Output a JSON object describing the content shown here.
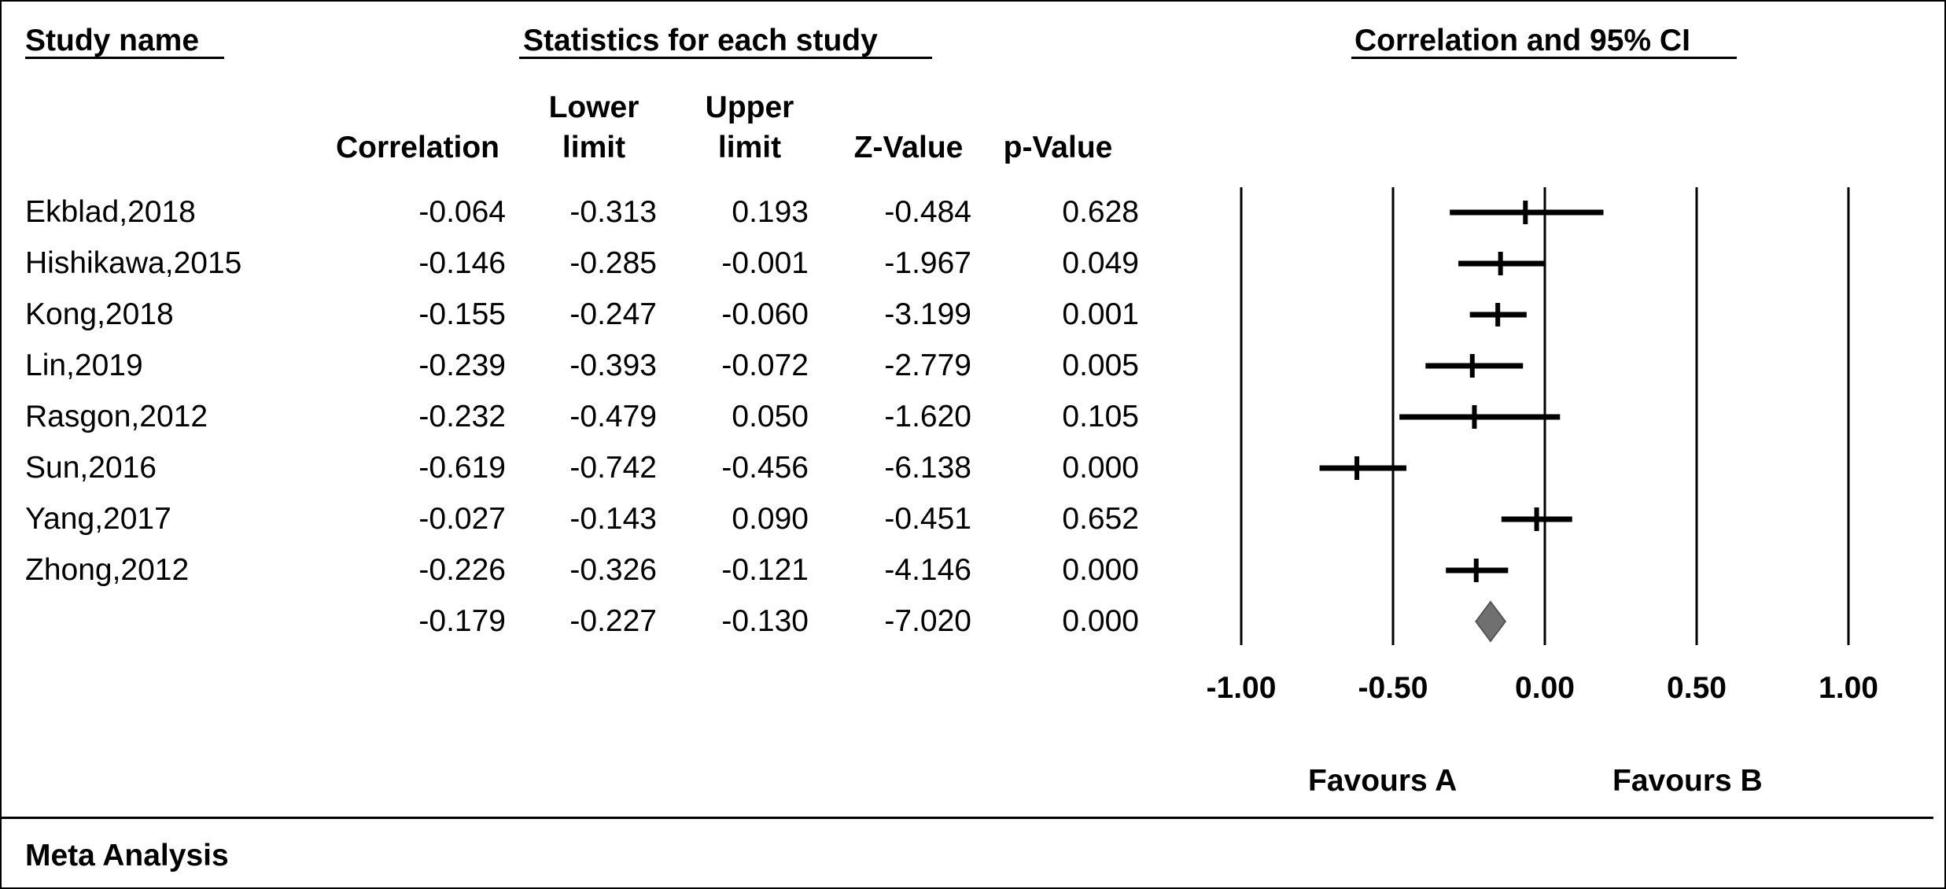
{
  "headers": {
    "study_name": "Study name",
    "stats_group": "Statistics for each study",
    "plot_group": "Correlation and 95% CI",
    "correlation": "Correlation",
    "lower_1": "Lower",
    "lower_2": "limit",
    "upper_1": "Upper",
    "upper_2": "limit",
    "zvalue": "Z-Value",
    "pvalue": "p-Value"
  },
  "rows": [
    {
      "name": "Ekblad,2018",
      "correlation": "-0.064",
      "lower": "-0.313",
      "upper": "0.193",
      "z": "-0.484",
      "p": "0.628"
    },
    {
      "name": "Hishikawa,2015",
      "correlation": "-0.146",
      "lower": "-0.285",
      "upper": "-0.001",
      "z": "-1.967",
      "p": "0.049"
    },
    {
      "name": "Kong,2018",
      "correlation": "-0.155",
      "lower": "-0.247",
      "upper": "-0.060",
      "z": "-3.199",
      "p": "0.001"
    },
    {
      "name": "Lin,2019",
      "correlation": "-0.239",
      "lower": "-0.393",
      "upper": "-0.072",
      "z": "-2.779",
      "p": "0.005"
    },
    {
      "name": "Rasgon,2012",
      "correlation": "-0.232",
      "lower": "-0.479",
      "upper": "0.050",
      "z": "-1.620",
      "p": "0.105"
    },
    {
      "name": "Sun,2016",
      "correlation": "-0.619",
      "lower": "-0.742",
      "upper": "-0.456",
      "z": "-6.138",
      "p": "0.000"
    },
    {
      "name": "Yang,2017",
      "correlation": "-0.027",
      "lower": "-0.143",
      "upper": "0.090",
      "z": "-0.451",
      "p": "0.652"
    },
    {
      "name": "Zhong,2012",
      "correlation": "-0.226",
      "lower": "-0.326",
      "upper": "-0.121",
      "z": "-4.146",
      "p": "0.000"
    }
  ],
  "summary": {
    "name": "",
    "correlation": "-0.179",
    "lower": "-0.227",
    "upper": "-0.130",
    "z": "-7.020",
    "p": "0.000"
  },
  "favours_a": "Favours A",
  "favours_b": "Favours B",
  "footer_label": "Meta Analysis",
  "colors": {
    "diamond": "#707070",
    "line": "#000000"
  },
  "chart_data": {
    "type": "forest",
    "xlim": [
      -1.0,
      1.0
    ],
    "xticks": [
      "-1.00",
      "-0.50",
      "0.00",
      "0.50",
      "1.00"
    ],
    "studies": [
      {
        "name": "Ekblad,2018",
        "value": -0.064,
        "lower": -0.313,
        "upper": 0.193
      },
      {
        "name": "Hishikawa,2015",
        "value": -0.146,
        "lower": -0.285,
        "upper": -0.001
      },
      {
        "name": "Kong,2018",
        "value": -0.155,
        "lower": -0.247,
        "upper": -0.06
      },
      {
        "name": "Lin,2019",
        "value": -0.239,
        "lower": -0.393,
        "upper": -0.072
      },
      {
        "name": "Rasgon,2012",
        "value": -0.232,
        "lower": -0.479,
        "upper": 0.05
      },
      {
        "name": "Sun,2016",
        "value": -0.619,
        "lower": -0.742,
        "upper": -0.456
      },
      {
        "name": "Yang,2017",
        "value": -0.027,
        "lower": -0.143,
        "upper": 0.09
      },
      {
        "name": "Zhong,2012",
        "value": -0.226,
        "lower": -0.326,
        "upper": -0.121
      }
    ],
    "summary": {
      "value": -0.179,
      "lower": -0.227,
      "upper": -0.13
    }
  }
}
